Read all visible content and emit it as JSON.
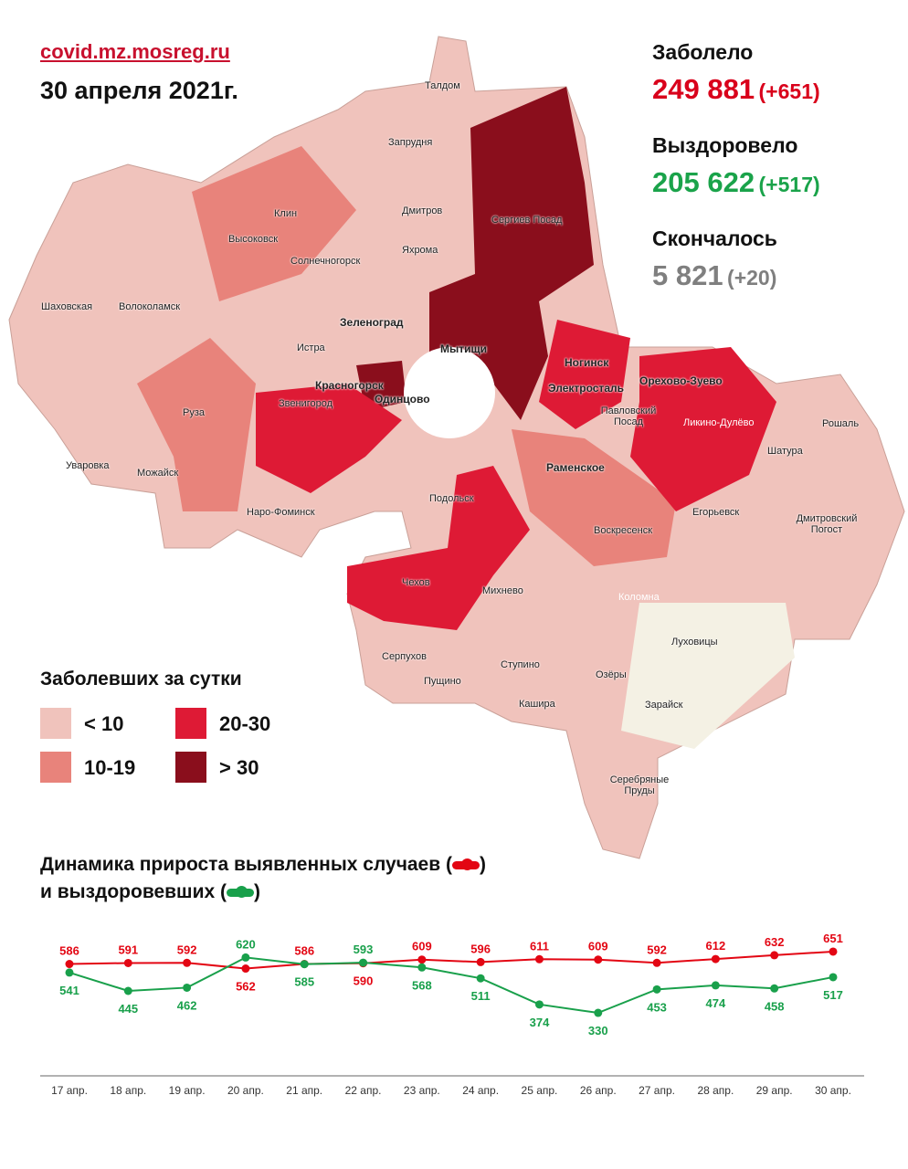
{
  "header": {
    "site": "covid.mz.mosreg.ru",
    "date": "30 апреля 2021г."
  },
  "stats": {
    "infected": {
      "label": "Заболело",
      "value": "249 881",
      "delta": "(+651)"
    },
    "recovered": {
      "label": "Выздоровело",
      "value": "205 622",
      "delta": "(+517)"
    },
    "died": {
      "label": "Скончалось",
      "value": "5 821",
      "delta": "(+20)"
    }
  },
  "colors": {
    "red": "#d9001b",
    "green": "#1aa34a",
    "gray": "#7f7f7f",
    "lt10": "#f0c3bc",
    "c10_19": "#e8837b",
    "c20_30": "#de1a35",
    "gt30": "#8a0e1c",
    "other": "#f4f1e4"
  },
  "map_labels": [
    "Талдом",
    "Запрудня",
    "Дмитров",
    "Сергиев Посад",
    "Клин",
    "Высоковск",
    "Яхрома",
    "Солнечногорск",
    "Шаховская",
    "Волоколамск",
    "Зеленоград",
    "Истра",
    "Мытищи",
    "Красногорск",
    "Ногинск",
    "Электросталь",
    "Орехово-Зуево",
    "Звенигород",
    "Одинцово",
    "Павловский Посад",
    "Ликино-Дулёво",
    "Руза",
    "Рошаль",
    "Шатура",
    "Уваровка",
    "Можайск",
    "Раменское",
    "Наро-Фоминск",
    "Подольск",
    "Егорьевск",
    "Дмитровский Погост",
    "Воскресенск",
    "Чехов",
    "Михнево",
    "Коломна",
    "Луховицы",
    "Серпухов",
    "Пущино",
    "Ступино",
    "Озёры",
    "Кашира",
    "Зарайск",
    "Серебряные Пруды"
  ],
  "legend": {
    "title": "Заболевших за сутки",
    "items": [
      "< 10",
      "10-19",
      "20-30",
      "> 30"
    ]
  },
  "dynamics": {
    "line1": "Динамика прироста выявленных случаев (",
    "line2": "и выздоровевших (",
    "close": ")"
  },
  "chart_data": {
    "type": "line",
    "title": "Динамика прироста выявленных случаев и выздоровевших",
    "categories": [
      "17 апр.",
      "18 апр.",
      "19 апр.",
      "20 апр.",
      "21 апр.",
      "22 апр.",
      "23 апр.",
      "24 апр.",
      "25 апр.",
      "26 апр.",
      "27 апр.",
      "28 апр.",
      "29 апр.",
      "30 апр."
    ],
    "series": [
      {
        "name": "Выявленные случаи",
        "color": "#e30613",
        "values": [
          586,
          591,
          592,
          562,
          586,
          590,
          609,
          596,
          611,
          609,
          592,
          612,
          632,
          651
        ]
      },
      {
        "name": "Выздоровевшие",
        "color": "#19a04b",
        "values": [
          541,
          445,
          462,
          620,
          585,
          593,
          568,
          511,
          374,
          330,
          453,
          474,
          458,
          517
        ]
      }
    ],
    "ylim": [
      0,
      651
    ],
    "grid": false,
    "legend": "top-left"
  }
}
